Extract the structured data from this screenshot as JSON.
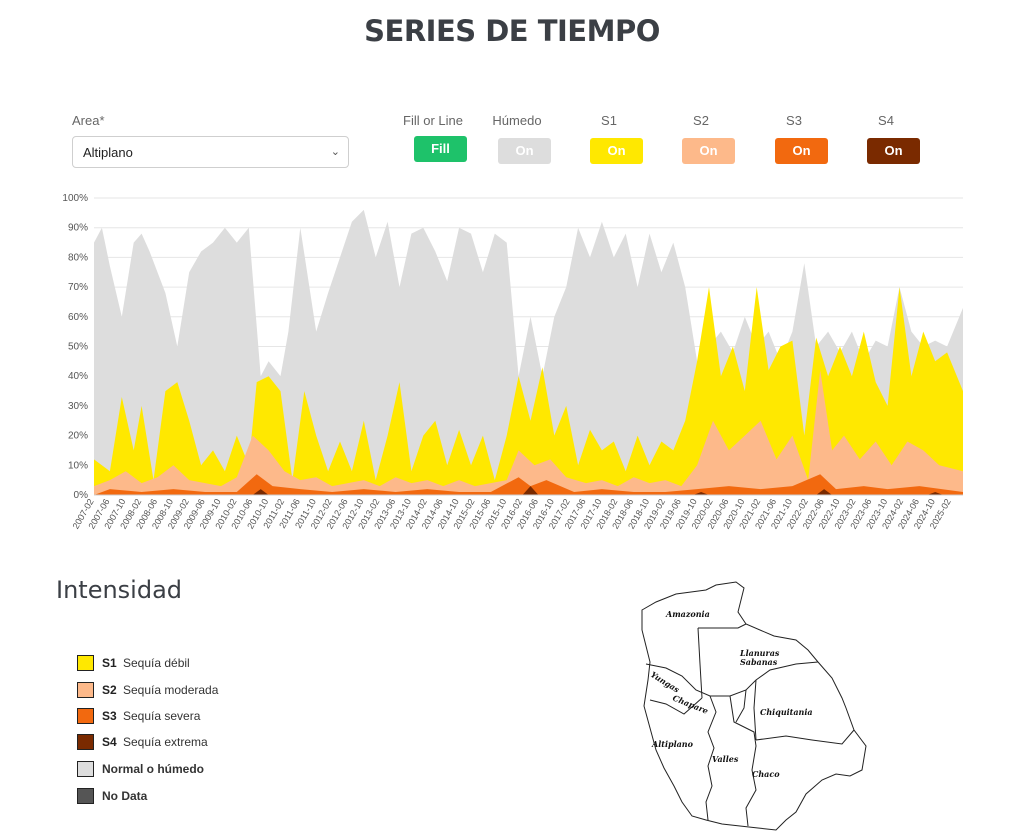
{
  "page": {
    "title": "SERIES DE TIEMPO"
  },
  "controls": {
    "area_label": "Area*",
    "area_value": "Altiplano",
    "fill_label": "Fill or Line",
    "fill_button": "Fill",
    "toggles": [
      {
        "label": "Húmedo",
        "text": "On",
        "color": "#dddddd"
      },
      {
        "label": "S1",
        "text": "On",
        "color": "#ffe800"
      },
      {
        "label": "S2",
        "text": "On",
        "color": "#fdb98a"
      },
      {
        "label": "S3",
        "text": "On",
        "color": "#f2690f"
      },
      {
        "label": "S4",
        "text": "On",
        "color": "#7a2a00"
      }
    ],
    "fill_color": "#1ec26a"
  },
  "chart_data": {
    "type": "area",
    "stacked": false,
    "ylim": [
      0,
      100
    ],
    "yticks": [
      "0%",
      "10%",
      "20%",
      "30%",
      "40%",
      "50%",
      "60%",
      "70%",
      "80%",
      "90%",
      "100%"
    ],
    "grid": true,
    "x_start": "2007-02",
    "x_end": "2025-05",
    "xtick_step_months": 4,
    "series": [
      {
        "color": "#dddddd",
        "points": [
          [
            "2007-02",
            85
          ],
          [
            "2007-04",
            90
          ],
          [
            "2007-06",
            77
          ],
          [
            "2007-09",
            60
          ],
          [
            "2007-12",
            85
          ],
          [
            "2008-02",
            88
          ],
          [
            "2008-04",
            82
          ],
          [
            "2008-08",
            68
          ],
          [
            "2008-11",
            50
          ],
          [
            "2009-02",
            75
          ],
          [
            "2009-05",
            82
          ],
          [
            "2009-08",
            85
          ],
          [
            "2009-11",
            90
          ],
          [
            "2010-02",
            85
          ],
          [
            "2010-05",
            90
          ],
          [
            "2010-08",
            40
          ],
          [
            "2010-10",
            45
          ],
          [
            "2011-01",
            40
          ],
          [
            "2011-03",
            55
          ],
          [
            "2011-06",
            90
          ],
          [
            "2011-10",
            55
          ],
          [
            "2012-01",
            68
          ],
          [
            "2012-04",
            80
          ],
          [
            "2012-07",
            92
          ],
          [
            "2012-10",
            96
          ],
          [
            "2013-01",
            80
          ],
          [
            "2013-04",
            92
          ],
          [
            "2013-07",
            70
          ],
          [
            "2013-10",
            88
          ],
          [
            "2014-01",
            90
          ],
          [
            "2014-04",
            82
          ],
          [
            "2014-07",
            72
          ],
          [
            "2014-10",
            90
          ],
          [
            "2015-01",
            88
          ],
          [
            "2015-04",
            75
          ],
          [
            "2015-07",
            88
          ],
          [
            "2015-10",
            85
          ],
          [
            "2016-01",
            40
          ],
          [
            "2016-04",
            60
          ],
          [
            "2016-07",
            40
          ],
          [
            "2016-10",
            60
          ],
          [
            "2017-01",
            70
          ],
          [
            "2017-04",
            90
          ],
          [
            "2017-07",
            80
          ],
          [
            "2017-10",
            92
          ],
          [
            "2018-01",
            80
          ],
          [
            "2018-04",
            88
          ],
          [
            "2018-07",
            70
          ],
          [
            "2018-10",
            88
          ],
          [
            "2019-01",
            75
          ],
          [
            "2019-04",
            85
          ],
          [
            "2019-07",
            70
          ],
          [
            "2019-10",
            45
          ],
          [
            "2020-01",
            50
          ],
          [
            "2020-04",
            55
          ],
          [
            "2020-07",
            48
          ],
          [
            "2020-10",
            60
          ],
          [
            "2021-01",
            50
          ],
          [
            "2021-04",
            55
          ],
          [
            "2021-07",
            45
          ],
          [
            "2021-10",
            55
          ],
          [
            "2022-01",
            78
          ],
          [
            "2022-04",
            50
          ],
          [
            "2022-07",
            55
          ],
          [
            "2022-10",
            48
          ],
          [
            "2023-01",
            55
          ],
          [
            "2023-04",
            45
          ],
          [
            "2023-07",
            52
          ],
          [
            "2023-10",
            50
          ],
          [
            "2024-01",
            70
          ],
          [
            "2024-04",
            55
          ],
          [
            "2024-07",
            50
          ],
          [
            "2024-10",
            52
          ],
          [
            "2025-01",
            50
          ],
          [
            "2025-05",
            63
          ]
        ]
      },
      {
        "color": "#ffe800",
        "points": [
          [
            "2007-02",
            12
          ],
          [
            "2007-06",
            8
          ],
          [
            "2007-09",
            33
          ],
          [
            "2007-12",
            15
          ],
          [
            "2008-02",
            30
          ],
          [
            "2008-05",
            5
          ],
          [
            "2008-08",
            35
          ],
          [
            "2008-11",
            38
          ],
          [
            "2009-02",
            25
          ],
          [
            "2009-05",
            10
          ],
          [
            "2009-08",
            15
          ],
          [
            "2009-11",
            8
          ],
          [
            "2010-02",
            20
          ],
          [
            "2010-05",
            10
          ],
          [
            "2010-07",
            38
          ],
          [
            "2010-10",
            40
          ],
          [
            "2011-01",
            35
          ],
          [
            "2011-04",
            5
          ],
          [
            "2011-07",
            35
          ],
          [
            "2011-10",
            20
          ],
          [
            "2012-01",
            8
          ],
          [
            "2012-04",
            18
          ],
          [
            "2012-07",
            8
          ],
          [
            "2012-10",
            25
          ],
          [
            "2013-01",
            5
          ],
          [
            "2013-04",
            20
          ],
          [
            "2013-07",
            38
          ],
          [
            "2013-10",
            8
          ],
          [
            "2014-01",
            20
          ],
          [
            "2014-04",
            25
          ],
          [
            "2014-07",
            10
          ],
          [
            "2014-10",
            22
          ],
          [
            "2015-01",
            10
          ],
          [
            "2015-04",
            20
          ],
          [
            "2015-07",
            5
          ],
          [
            "2015-10",
            20
          ],
          [
            "2016-01",
            40
          ],
          [
            "2016-04",
            25
          ],
          [
            "2016-07",
            43
          ],
          [
            "2016-10",
            20
          ],
          [
            "2017-01",
            30
          ],
          [
            "2017-04",
            10
          ],
          [
            "2017-07",
            22
          ],
          [
            "2017-10",
            15
          ],
          [
            "2018-01",
            18
          ],
          [
            "2018-04",
            8
          ],
          [
            "2018-07",
            20
          ],
          [
            "2018-10",
            10
          ],
          [
            "2019-01",
            18
          ],
          [
            "2019-04",
            15
          ],
          [
            "2019-07",
            25
          ],
          [
            "2019-10",
            45
          ],
          [
            "2020-01",
            70
          ],
          [
            "2020-04",
            40
          ],
          [
            "2020-07",
            50
          ],
          [
            "2020-10",
            35
          ],
          [
            "2021-01",
            70
          ],
          [
            "2021-04",
            42
          ],
          [
            "2021-07",
            50
          ],
          [
            "2021-10",
            52
          ],
          [
            "2022-01",
            20
          ],
          [
            "2022-04",
            53
          ],
          [
            "2022-07",
            40
          ],
          [
            "2022-10",
            50
          ],
          [
            "2023-01",
            40
          ],
          [
            "2023-04",
            55
          ],
          [
            "2023-07",
            38
          ],
          [
            "2023-10",
            30
          ],
          [
            "2024-01",
            70
          ],
          [
            "2024-04",
            40
          ],
          [
            "2024-07",
            55
          ],
          [
            "2024-10",
            45
          ],
          [
            "2025-01",
            48
          ],
          [
            "2025-05",
            35
          ]
        ]
      },
      {
        "color": "#fdb98a",
        "points": [
          [
            "2007-02",
            3
          ],
          [
            "2007-06",
            5
          ],
          [
            "2007-10",
            8
          ],
          [
            "2008-02",
            4
          ],
          [
            "2008-06",
            6
          ],
          [
            "2008-10",
            10
          ],
          [
            "2009-02",
            5
          ],
          [
            "2009-06",
            4
          ],
          [
            "2009-10",
            3
          ],
          [
            "2010-02",
            6
          ],
          [
            "2010-06",
            20
          ],
          [
            "2010-10",
            15
          ],
          [
            "2011-02",
            8
          ],
          [
            "2011-06",
            5
          ],
          [
            "2011-10",
            6
          ],
          [
            "2012-02",
            3
          ],
          [
            "2012-06",
            4
          ],
          [
            "2012-10",
            5
          ],
          [
            "2013-02",
            3
          ],
          [
            "2013-06",
            6
          ],
          [
            "2013-10",
            4
          ],
          [
            "2014-02",
            5
          ],
          [
            "2014-06",
            3
          ],
          [
            "2014-10",
            5
          ],
          [
            "2015-02",
            3
          ],
          [
            "2015-06",
            4
          ],
          [
            "2015-10",
            5
          ],
          [
            "2016-01",
            15
          ],
          [
            "2016-05",
            10
          ],
          [
            "2016-09",
            12
          ],
          [
            "2017-01",
            6
          ],
          [
            "2017-06",
            4
          ],
          [
            "2017-10",
            5
          ],
          [
            "2018-02",
            3
          ],
          [
            "2018-06",
            6
          ],
          [
            "2018-10",
            4
          ],
          [
            "2019-02",
            5
          ],
          [
            "2019-06",
            3
          ],
          [
            "2019-10",
            10
          ],
          [
            "2020-02",
            25
          ],
          [
            "2020-06",
            15
          ],
          [
            "2020-10",
            20
          ],
          [
            "2021-02",
            25
          ],
          [
            "2021-06",
            12
          ],
          [
            "2021-10",
            20
          ],
          [
            "2022-02",
            5
          ],
          [
            "2022-05",
            42
          ],
          [
            "2022-08",
            15
          ],
          [
            "2022-11",
            20
          ],
          [
            "2023-03",
            12
          ],
          [
            "2023-07",
            18
          ],
          [
            "2023-11",
            10
          ],
          [
            "2024-03",
            18
          ],
          [
            "2024-07",
            15
          ],
          [
            "2024-11",
            10
          ],
          [
            "2025-05",
            8
          ]
        ]
      },
      {
        "color": "#f2690f",
        "points": [
          [
            "2007-02",
            0
          ],
          [
            "2007-06",
            2
          ],
          [
            "2008-02",
            1
          ],
          [
            "2008-10",
            2
          ],
          [
            "2009-06",
            1
          ],
          [
            "2010-02",
            1
          ],
          [
            "2010-07",
            7
          ],
          [
            "2010-11",
            3
          ],
          [
            "2011-06",
            2
          ],
          [
            "2012-02",
            1
          ],
          [
            "2012-10",
            2
          ],
          [
            "2013-06",
            1
          ],
          [
            "2014-02",
            2
          ],
          [
            "2014-10",
            1
          ],
          [
            "2015-06",
            1
          ],
          [
            "2016-01",
            6
          ],
          [
            "2016-04",
            3
          ],
          [
            "2016-08",
            5
          ],
          [
            "2017-03",
            1
          ],
          [
            "2017-10",
            2
          ],
          [
            "2018-06",
            1
          ],
          [
            "2019-02",
            1
          ],
          [
            "2019-10",
            2
          ],
          [
            "2020-06",
            3
          ],
          [
            "2021-02",
            2
          ],
          [
            "2021-10",
            3
          ],
          [
            "2022-05",
            7
          ],
          [
            "2022-09",
            2
          ],
          [
            "2023-04",
            3
          ],
          [
            "2023-10",
            2
          ],
          [
            "2024-06",
            3
          ],
          [
            "2025-05",
            1
          ]
        ]
      },
      {
        "color": "#7a2a00",
        "points": [
          [
            "2007-02",
            0
          ],
          [
            "2010-06",
            0
          ],
          [
            "2010-08",
            2
          ],
          [
            "2010-10",
            0
          ],
          [
            "2016-02",
            0
          ],
          [
            "2016-04",
            3
          ],
          [
            "2016-06",
            0
          ],
          [
            "2019-09",
            0
          ],
          [
            "2019-11",
            1
          ],
          [
            "2020-01",
            0
          ],
          [
            "2022-04",
            0
          ],
          [
            "2022-06",
            2
          ],
          [
            "2022-08",
            0
          ],
          [
            "2024-08",
            0
          ],
          [
            "2024-10",
            1
          ],
          [
            "2024-12",
            0
          ],
          [
            "2025-05",
            0
          ]
        ]
      }
    ]
  },
  "intensidad": {
    "title": "Intensidad",
    "items": [
      {
        "code": "S1",
        "label": "Sequía débil",
        "color": "#ffe800",
        "bold": false
      },
      {
        "code": "S2",
        "label": "Sequía moderada",
        "color": "#fdb98a",
        "bold": false
      },
      {
        "code": "S3",
        "label": "Sequía severa",
        "color": "#f2690f",
        "bold": false
      },
      {
        "code": "S4",
        "label": "Sequía extrema",
        "color": "#7a2a00",
        "bold": false
      },
      {
        "code": "",
        "label": "Normal o húmedo",
        "color": "#dddddd",
        "bold": true
      },
      {
        "code": "",
        "label": "No Data",
        "color": "#555555",
        "bold": true
      }
    ]
  },
  "map": {
    "regions": [
      "Amazonia",
      "Llanuras",
      "Sabanas",
      "Yungas",
      "Chapare",
      "Chiquitania",
      "Altiplano",
      "Valles",
      "Chaco"
    ]
  }
}
